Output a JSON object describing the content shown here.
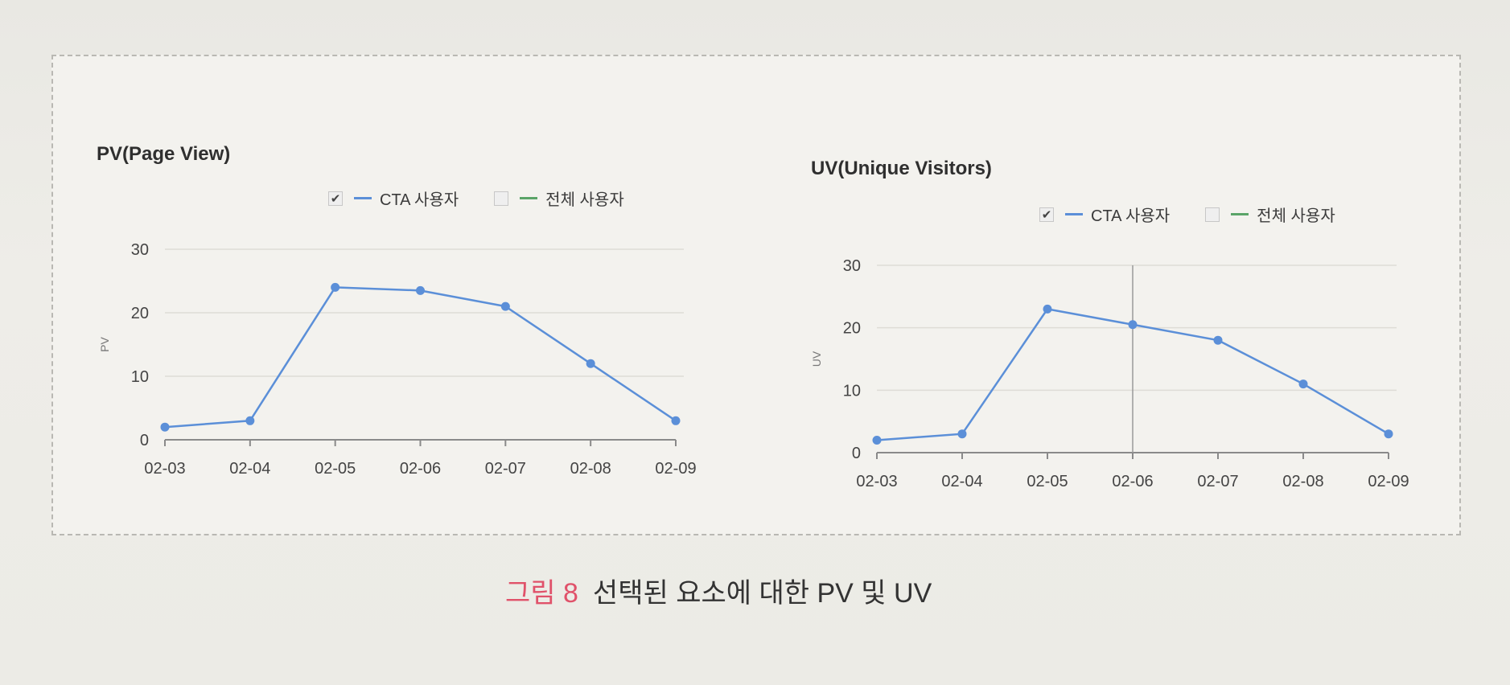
{
  "caption": {
    "figure_number": "그림 8",
    "text": "선택된 요소에 대한 PV 및 UV"
  },
  "colors": {
    "series_cta": "#5b8fd8",
    "series_all": "#5aa468",
    "caption_accent": "#e0526a"
  },
  "chart_data": [
    {
      "type": "line",
      "title": "PV(Page View)",
      "xlabel": "",
      "ylabel": "PV",
      "x": [
        "02-03",
        "02-04",
        "02-05",
        "02-06",
        "02-07",
        "02-08",
        "02-09"
      ],
      "ylim": [
        0,
        30
      ],
      "yticks": [
        0,
        10,
        20,
        30
      ],
      "grid": true,
      "legend": [
        {
          "name": "CTA 사용자",
          "checked": true,
          "check_mark": "✔"
        },
        {
          "name": "전체 사용자",
          "checked": false,
          "check_mark": ""
        }
      ],
      "series": [
        {
          "name": "CTA 사용자",
          "values": [
            2,
            3,
            24,
            23.5,
            21,
            12,
            3
          ]
        }
      ]
    },
    {
      "type": "line",
      "title": "UV(Unique Visitors)",
      "xlabel": "",
      "ylabel": "UV",
      "x": [
        "02-03",
        "02-04",
        "02-05",
        "02-06",
        "02-07",
        "02-08",
        "02-09"
      ],
      "ylim": [
        0,
        30
      ],
      "yticks": [
        0,
        10,
        20,
        30
      ],
      "grid": true,
      "hover_category": "02-06",
      "legend": [
        {
          "name": "CTA 사용자",
          "checked": true,
          "check_mark": "✔"
        },
        {
          "name": "전체 사용자",
          "checked": false,
          "check_mark": ""
        }
      ],
      "series": [
        {
          "name": "CTA 사용자",
          "values": [
            2,
            3,
            23,
            20.5,
            18,
            11,
            3
          ]
        }
      ]
    }
  ]
}
